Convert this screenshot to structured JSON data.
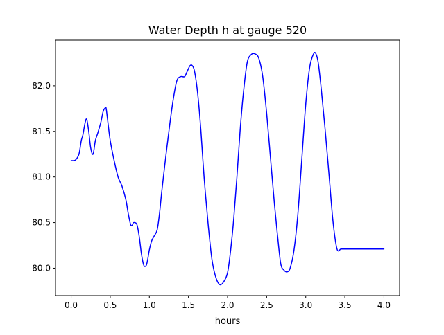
{
  "chart_data": {
    "type": "line",
    "title": "Water Depth h at gauge 520",
    "xlabel": "hours",
    "ylabel": "",
    "xlim": [
      -0.2,
      4.2
    ],
    "ylim": [
      79.7,
      82.5
    ],
    "xticks": [
      0.0,
      0.5,
      1.0,
      1.5,
      2.0,
      2.5,
      3.0,
      3.5,
      4.0
    ],
    "xtick_labels": [
      "0.0",
      "0.5",
      "1.0",
      "1.5",
      "2.0",
      "2.5",
      "3.0",
      "3.5",
      "4.0"
    ],
    "yticks": [
      80.0,
      80.5,
      81.0,
      81.5,
      82.0
    ],
    "ytick_labels": [
      "80.0",
      "80.5",
      "81.0",
      "81.5",
      "82.0"
    ],
    "grid": false,
    "legend": false,
    "series": [
      {
        "color": "#0000ff",
        "x": [
          0.0,
          0.03,
          0.06,
          0.1,
          0.13,
          0.15,
          0.18,
          0.2,
          0.225,
          0.25,
          0.28,
          0.31,
          0.34,
          0.38,
          0.41,
          0.44,
          0.45,
          0.47,
          0.5,
          0.55,
          0.6,
          0.65,
          0.7,
          0.73,
          0.76,
          0.78,
          0.8,
          0.84,
          0.87,
          0.9,
          0.93,
          0.96,
          0.98,
          1.0,
          1.03,
          1.06,
          1.1,
          1.13,
          1.16,
          1.2,
          1.25,
          1.3,
          1.35,
          1.4,
          1.45,
          1.48,
          1.52,
          1.55,
          1.58,
          1.62,
          1.66,
          1.7,
          1.75,
          1.8,
          1.85,
          1.9,
          1.95,
          2.0,
          2.04,
          2.08,
          2.12,
          2.16,
          2.2,
          2.25,
          2.3,
          2.35,
          2.4,
          2.45,
          2.5,
          2.55,
          2.6,
          2.64,
          2.68,
          2.72,
          2.76,
          2.8,
          2.85,
          2.9,
          2.95,
          3.0,
          3.05,
          3.1,
          3.13,
          3.16,
          3.2,
          3.25,
          3.3,
          3.35,
          3.4,
          3.45,
          3.5,
          3.55,
          3.6,
          3.63,
          3.66,
          3.7,
          3.75,
          3.8,
          3.85,
          3.9,
          3.95,
          4.0
        ],
        "y": [
          81.18,
          81.18,
          81.19,
          81.25,
          81.4,
          81.46,
          81.6,
          81.63,
          81.5,
          81.32,
          81.25,
          81.4,
          81.48,
          81.6,
          81.72,
          81.76,
          81.74,
          81.6,
          81.4,
          81.18,
          81.0,
          80.9,
          80.75,
          80.6,
          80.48,
          80.47,
          80.5,
          80.48,
          80.35,
          80.15,
          80.03,
          80.03,
          80.1,
          80.2,
          80.3,
          80.35,
          80.42,
          80.6,
          80.85,
          81.15,
          81.5,
          81.82,
          82.05,
          82.1,
          82.1,
          82.15,
          82.22,
          82.22,
          82.15,
          81.9,
          81.5,
          81.0,
          80.5,
          80.1,
          79.9,
          79.82,
          79.85,
          79.95,
          80.2,
          80.55,
          81.0,
          81.5,
          81.9,
          82.25,
          82.34,
          82.35,
          82.3,
          82.1,
          81.7,
          81.2,
          80.7,
          80.35,
          80.05,
          79.98,
          79.96,
          80.0,
          80.2,
          80.6,
          81.2,
          81.8,
          82.2,
          82.35,
          82.35,
          82.25,
          81.95,
          81.5,
          81.0,
          80.5,
          80.21,
          80.21,
          80.21,
          80.21,
          80.21,
          80.21,
          80.21,
          80.21,
          80.21,
          80.21,
          80.21,
          80.21,
          80.21,
          80.21
        ]
      }
    ]
  }
}
